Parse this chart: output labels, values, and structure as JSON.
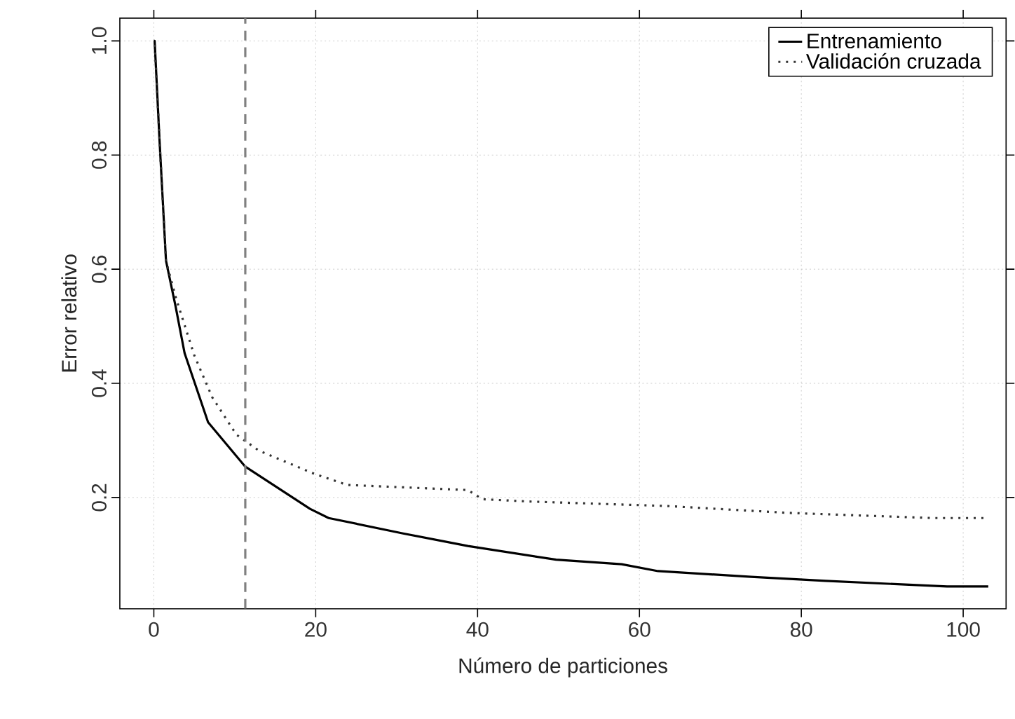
{
  "chart_data": {
    "type": "line",
    "xlabel": "Número de particiones",
    "ylabel": "Error relativo",
    "xlim": [
      -4.2,
      105.3
    ],
    "ylim": [
      0.005,
      1.04
    ],
    "xticks": [
      0,
      20,
      40,
      60,
      80,
      100
    ],
    "yticks": [
      0.2,
      0.4,
      0.6,
      0.8,
      {
        "value": 1.0,
        "label": "1.0"
      }
    ],
    "grid": true,
    "legend": "top right",
    "marker": "none",
    "series": [
      {
        "name": "Entrenamiento",
        "color": "#000000",
        "line_style": "solid",
        "x": [
          0,
          0.1,
          0.7,
          1.5,
          2.7,
          3.8,
          6.7,
          11.3,
          19.3,
          21.6,
          30.8,
          38.8,
          49.7,
          57.8,
          62.3,
          73.8,
          83,
          98,
          103.1
        ],
        "values": [
          1.0,
          1.0,
          0.827,
          0.615,
          0.534,
          0.453,
          0.332,
          0.254,
          0.18,
          0.164,
          0.137,
          0.115,
          0.091,
          0.083,
          0.071,
          0.061,
          0.054,
          0.044,
          0.044
        ]
      },
      {
        "name": "Validación cruzada",
        "color": "#333333",
        "line_style": "dotted",
        "x": [
          0,
          0.1,
          0.7,
          1.5,
          2.7,
          5,
          7.2,
          10.2,
          13,
          19.9,
          23.9,
          38.8,
          40.6,
          46.3,
          63.5,
          78.4,
          96.2,
          102.5
        ],
        "values": [
          1.0,
          1.0,
          0.827,
          0.615,
          0.551,
          0.449,
          0.376,
          0.31,
          0.282,
          0.241,
          0.222,
          0.213,
          0.197,
          0.193,
          0.185,
          0.173,
          0.164,
          0.164
        ]
      }
    ],
    "ref_lines": [
      {
        "axis": "x",
        "value": 11.3,
        "color": "#808080",
        "line_style": "dashed"
      }
    ]
  }
}
